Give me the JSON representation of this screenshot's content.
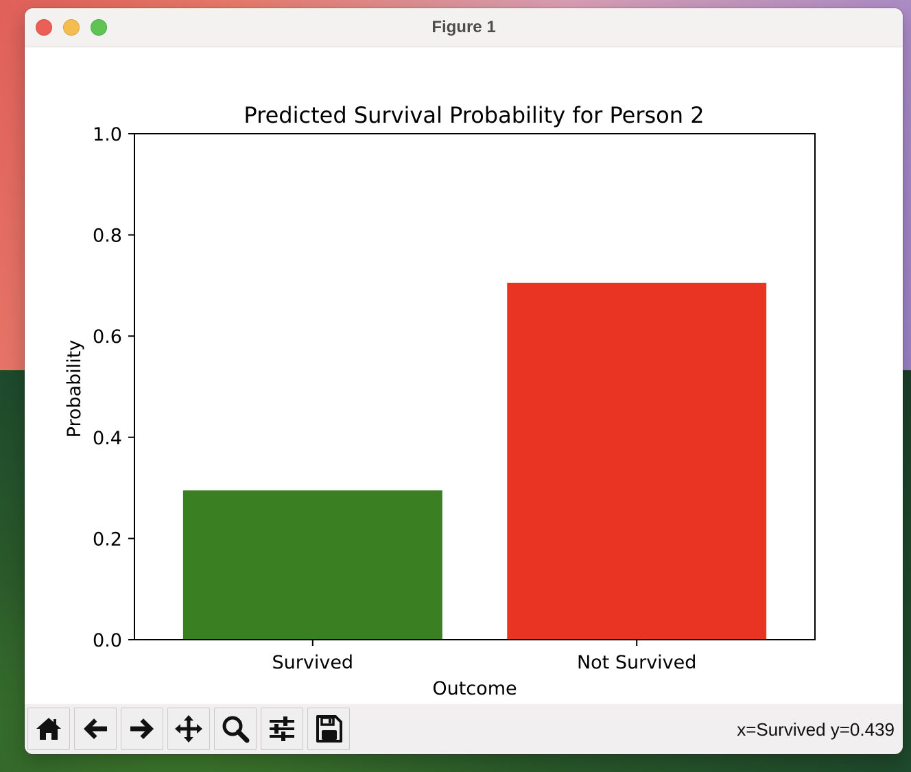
{
  "window": {
    "title": "Figure 1",
    "controls": [
      "close",
      "minimize",
      "maximize"
    ]
  },
  "chart_data": {
    "type": "bar",
    "title": "Predicted Survival Probability for Person 2",
    "xlabel": "Outcome",
    "ylabel": "Probability",
    "categories": [
      "Survived",
      "Not Survived"
    ],
    "values": [
      0.295,
      0.705
    ],
    "colors": [
      "#3a7f21",
      "#e93424"
    ],
    "ylim": [
      0,
      1.0
    ],
    "yticks": [
      "0.0",
      "0.2",
      "0.4",
      "0.6",
      "0.8",
      "1.0"
    ],
    "grid": false
  },
  "toolbar": {
    "buttons": [
      {
        "name": "home",
        "icon": "home-icon"
      },
      {
        "name": "back",
        "icon": "arrow-left-icon"
      },
      {
        "name": "forward",
        "icon": "arrow-right-icon"
      },
      {
        "name": "pan",
        "icon": "move-icon"
      },
      {
        "name": "zoom",
        "icon": "magnifier-icon"
      },
      {
        "name": "configure-subplots",
        "icon": "sliders-icon"
      },
      {
        "name": "save",
        "icon": "floppy-disk-icon"
      }
    ],
    "coordinates": "x=Survived y=0.439"
  }
}
